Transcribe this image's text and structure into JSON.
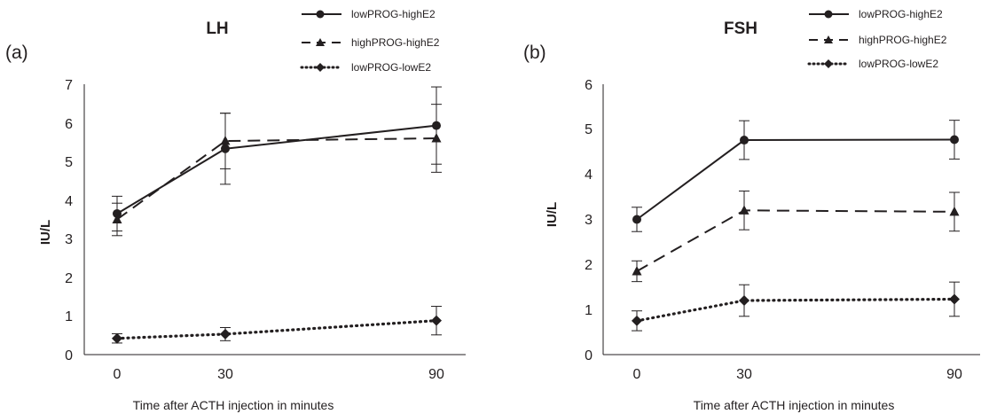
{
  "chart_data": [
    {
      "type": "line",
      "panel_label": "(a)",
      "title": "LH",
      "xlabel": "Time after ACTH injection in minutes",
      "ylabel": "IU/L",
      "categories": [
        "0",
        "30",
        "90"
      ],
      "ylim": [
        0,
        7
      ],
      "yticks": [
        "0",
        "1",
        "2",
        "3",
        "4",
        "5",
        "6",
        "7"
      ],
      "grid": false,
      "legend_position": "top-right",
      "series": [
        {
          "name": "lowPROG-highE2",
          "marker": "circle",
          "line_style": "solid",
          "values": [
            3.65,
            5.33,
            5.93
          ],
          "errors": [
            0.45,
            0.92,
            1.0
          ]
        },
        {
          "name": "highPROG-highE2",
          "marker": "triangle",
          "line_style": "dashed",
          "values": [
            3.5,
            5.53,
            5.6
          ],
          "errors": [
            0.42,
            0.72,
            0.88
          ]
        },
        {
          "name": "lowPROG-lowE2",
          "marker": "diamond",
          "line_style": "dotted",
          "values": [
            0.42,
            0.53,
            0.88
          ],
          "errors": [
            0.12,
            0.17,
            0.37
          ]
        }
      ]
    },
    {
      "type": "line",
      "panel_label": "(b)",
      "title": "FSH",
      "xlabel": "Time after ACTH injection in minutes",
      "ylabel": "IU/L",
      "categories": [
        "0",
        "30",
        "90"
      ],
      "ylim": [
        0,
        6
      ],
      "yticks": [
        "0",
        "1",
        "2",
        "3",
        "4",
        "5",
        "6"
      ],
      "grid": false,
      "legend_position": "top-right",
      "series": [
        {
          "name": "lowPROG-highE2",
          "marker": "circle",
          "line_style": "solid",
          "values": [
            3.0,
            4.76,
            4.77
          ],
          "errors": [
            0.27,
            0.43,
            0.43
          ]
        },
        {
          "name": "highPROG-highE2",
          "marker": "triangle",
          "line_style": "dashed",
          "values": [
            1.85,
            3.2,
            3.17
          ],
          "errors": [
            0.23,
            0.43,
            0.43
          ]
        },
        {
          "name": "lowPROG-lowE2",
          "marker": "diamond",
          "line_style": "dotted",
          "values": [
            0.75,
            1.2,
            1.23
          ],
          "errors": [
            0.22,
            0.35,
            0.38
          ]
        }
      ]
    }
  ]
}
